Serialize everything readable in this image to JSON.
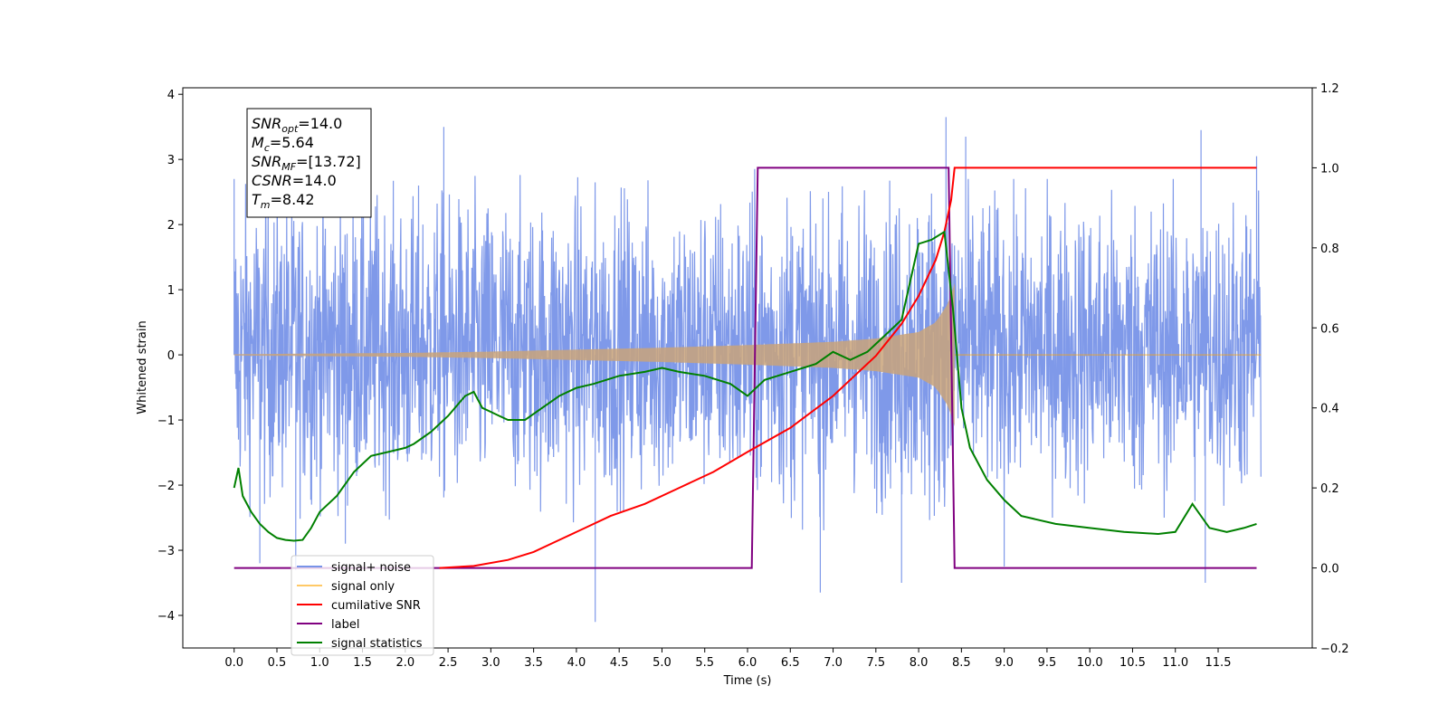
{
  "chart_data": {
    "type": "line",
    "xlabel": "Time (s)",
    "ylabel": "Whitened strain",
    "xlim": [
      -0.6,
      12.6
    ],
    "ylim": [
      -4.5,
      4.1
    ],
    "y2lim": [
      -0.2,
      1.2
    ],
    "x_ticks": [
      0.0,
      0.5,
      1.0,
      1.5,
      2.0,
      2.5,
      3.0,
      3.5,
      4.0,
      4.5,
      5.0,
      5.5,
      6.0,
      6.5,
      7.0,
      7.5,
      8.0,
      8.5,
      9.0,
      9.5,
      10.0,
      10.5,
      11.0,
      11.5
    ],
    "x_tick_labels": [
      "0.0",
      "0.5",
      "1.0",
      "1.5",
      "2.0",
      "2.5",
      "3.0",
      "3.5",
      "4.0",
      "4.5",
      "5.0",
      "5.5",
      "6.0",
      "6.5",
      "7.0",
      "7.5",
      "8.0",
      "8.5",
      "9.0",
      "9.5",
      "10.0",
      "10.5",
      "11.0",
      "11.5"
    ],
    "y_ticks": [
      4,
      3,
      2,
      1,
      0,
      -1,
      -2,
      -3,
      -4
    ],
    "y_tick_labels": [
      "4",
      "3",
      "2",
      "1",
      "0",
      "−1",
      "−2",
      "−3",
      "−4"
    ],
    "y2_ticks": [
      1.2,
      1.0,
      0.8,
      0.6,
      0.4,
      0.2,
      0.0,
      -0.2
    ],
    "y2_tick_labels": [
      "1.2",
      "1.0",
      "0.8",
      "0.6",
      "0.4",
      "0.2",
      "0.0",
      "−0.2"
    ],
    "grid": false,
    "legend_position": "lower-left",
    "annotation_lines": [
      {
        "sym": "SNR",
        "sub": "opt",
        "val": "=14.0"
      },
      {
        "sym": "M",
        "sub": "c",
        "val": "=5.64"
      },
      {
        "sym": "SNR",
        "sub": "MF",
        "val": "=[13.72]"
      },
      {
        "sym": "CSNR",
        "sub": "",
        "val": "=14.0"
      },
      {
        "sym": "T",
        "sub": "m",
        "val": "=8.42"
      }
    ],
    "series": [
      {
        "name": "signal+ noise",
        "color": "#7893e8",
        "axis": "left",
        "x_range": [
          0.0,
          12.0
        ],
        "noise_band": [
          -1.7,
          1.9
        ],
        "spike_points": [
          [
            0.0,
            2.7
          ],
          [
            0.05,
            -1.3
          ],
          [
            0.3,
            -3.2
          ],
          [
            0.72,
            -3.3
          ],
          [
            1.3,
            -2.9
          ],
          [
            2.45,
            3.5
          ],
          [
            4.22,
            -4.1
          ],
          [
            6.85,
            -3.65
          ],
          [
            7.8,
            -3.5
          ],
          [
            8.32,
            3.65
          ],
          [
            8.55,
            3.35
          ],
          [
            9.0,
            -3.25
          ],
          [
            11.3,
            3.45
          ],
          [
            11.35,
            -3.5
          ],
          [
            11.95,
            3.05
          ]
        ]
      },
      {
        "name": "signal only",
        "color": "#ffa500",
        "axis": "left",
        "chirp_end": 8.42,
        "envelope": [
          [
            0.0,
            0.01
          ],
          [
            2.0,
            0.03
          ],
          [
            3.0,
            0.05
          ],
          [
            4.0,
            0.08
          ],
          [
            5.0,
            0.11
          ],
          [
            6.0,
            0.15
          ],
          [
            7.0,
            0.2
          ],
          [
            7.5,
            0.25
          ],
          [
            8.0,
            0.35
          ],
          [
            8.2,
            0.5
          ],
          [
            8.35,
            0.8
          ],
          [
            8.42,
            1.1
          ]
        ]
      },
      {
        "name": "cumilative SNR",
        "color": "#ff0000",
        "axis": "right",
        "x": [
          2.4,
          2.8,
          3.2,
          3.5,
          3.8,
          4.1,
          4.4,
          4.8,
          5.2,
          5.6,
          6.0,
          6.5,
          7.0,
          7.5,
          7.8,
          8.0,
          8.2,
          8.3,
          8.38,
          8.42,
          8.45,
          11.95
        ],
        "y": [
          0.0,
          0.005,
          0.02,
          0.04,
          0.07,
          0.1,
          0.13,
          0.16,
          0.2,
          0.24,
          0.29,
          0.35,
          0.43,
          0.53,
          0.61,
          0.68,
          0.77,
          0.84,
          0.92,
          1.0,
          1.0,
          1.0
        ]
      },
      {
        "name": "label",
        "color": "#800080",
        "axis": "right",
        "x": [
          0.0,
          6.05,
          6.12,
          8.35,
          8.42,
          11.95
        ],
        "y": [
          0.0,
          0.0,
          1.0,
          1.0,
          0.0,
          0.0
        ]
      },
      {
        "name": "signal statistics",
        "color": "#008000",
        "axis": "right",
        "x": [
          0.0,
          0.05,
          0.1,
          0.2,
          0.3,
          0.4,
          0.5,
          0.6,
          0.7,
          0.8,
          0.9,
          1.0,
          1.2,
          1.4,
          1.6,
          1.8,
          2.0,
          2.1,
          2.3,
          2.5,
          2.7,
          2.8,
          2.9,
          3.0,
          3.1,
          3.2,
          3.4,
          3.6,
          3.8,
          4.0,
          4.2,
          4.5,
          4.8,
          5.0,
          5.2,
          5.5,
          5.8,
          6.0,
          6.2,
          6.5,
          6.8,
          7.0,
          7.2,
          7.4,
          7.6,
          7.8,
          8.0,
          8.15,
          8.3,
          8.4,
          8.5,
          8.6,
          8.8,
          9.0,
          9.2,
          9.6,
          10.0,
          10.4,
          10.8,
          11.0,
          11.2,
          11.4,
          11.6,
          11.8,
          11.95
        ],
        "y": [
          0.2,
          0.25,
          0.18,
          0.14,
          0.11,
          0.09,
          0.075,
          0.07,
          0.068,
          0.07,
          0.1,
          0.14,
          0.18,
          0.24,
          0.28,
          0.29,
          0.3,
          0.31,
          0.34,
          0.38,
          0.43,
          0.44,
          0.4,
          0.39,
          0.38,
          0.37,
          0.37,
          0.4,
          0.43,
          0.45,
          0.46,
          0.48,
          0.49,
          0.5,
          0.49,
          0.48,
          0.46,
          0.43,
          0.47,
          0.49,
          0.51,
          0.54,
          0.52,
          0.54,
          0.58,
          0.62,
          0.81,
          0.82,
          0.84,
          0.65,
          0.4,
          0.3,
          0.22,
          0.17,
          0.13,
          0.11,
          0.1,
          0.09,
          0.085,
          0.09,
          0.16,
          0.1,
          0.09,
          0.1,
          0.11
        ]
      }
    ]
  }
}
